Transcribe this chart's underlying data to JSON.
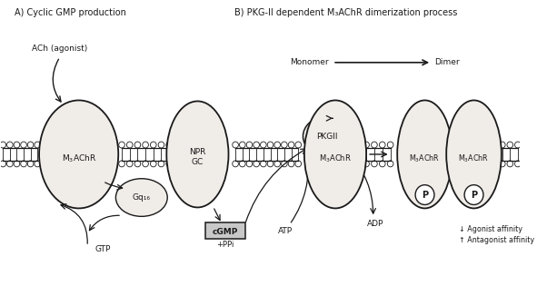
{
  "title_A": "A) Cyclic GMP production",
  "title_B": "B) PKG-II dependent M₃AChR dimerization process",
  "monomer_label": "Monomer",
  "dimer_label": "Dimer",
  "ellipse_fill": "#f0ece8",
  "ellipse_edge": "#1a1a1a",
  "text_color": "#1a1a1a",
  "arrow_color": "#1a1a1a",
  "cgmp_fill": "#c8c8c8",
  "ach_label": "ACh (agonist)",
  "gtp_label": "GTP",
  "atp_label": "ATP",
  "adp_label": "ADP",
  "ppi_label": "+PPi",
  "cgmp_label": "cGMP",
  "pkgii_label": "PKGII",
  "npr_label": "NPR\nGC",
  "gq_label": "Gq₁₆",
  "agonist_label": "↓ Agonist affinity",
  "antagonist_label": "↑ Antagonist affinity"
}
